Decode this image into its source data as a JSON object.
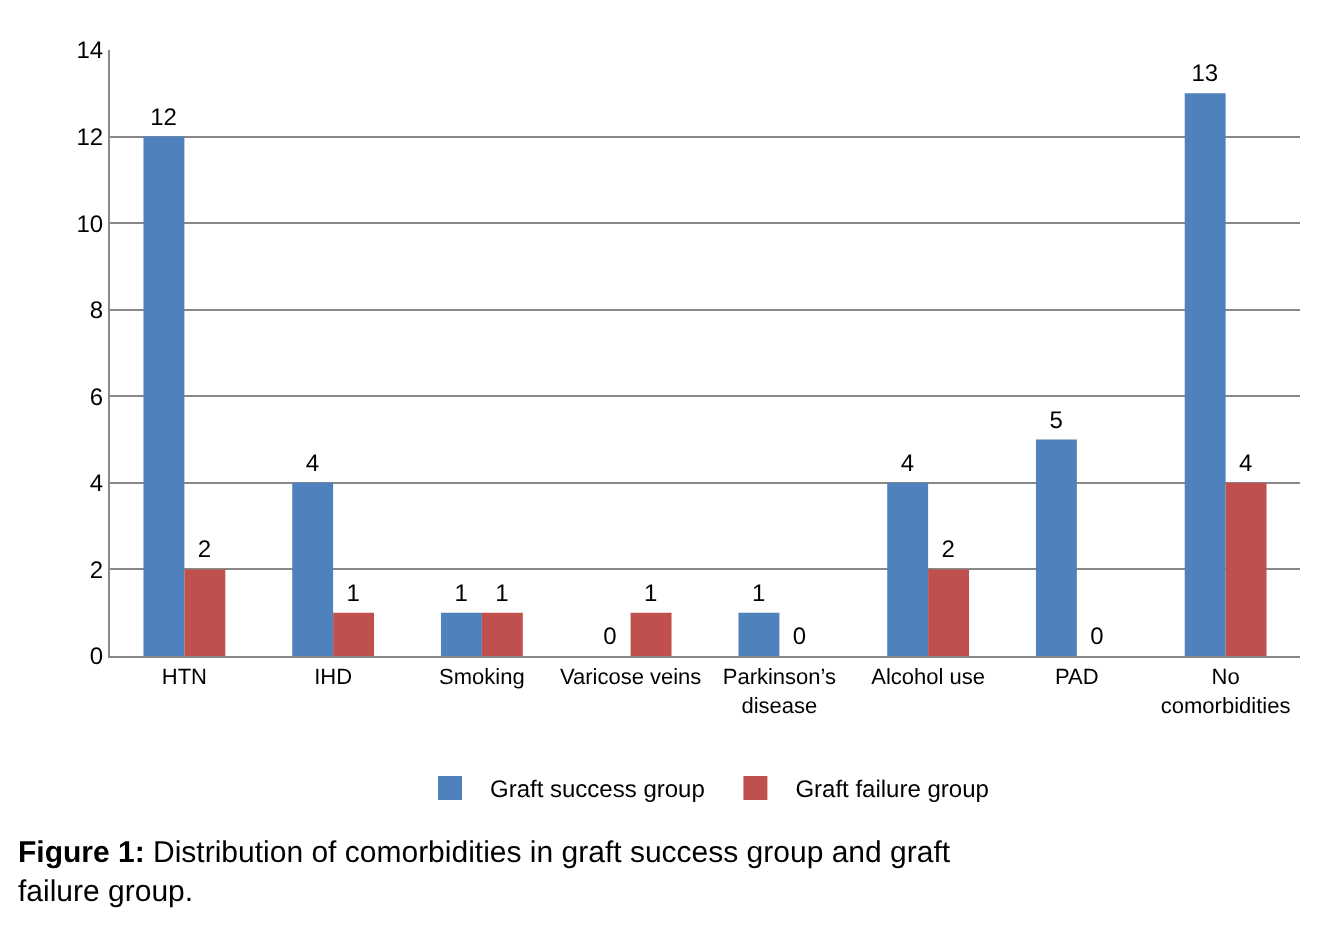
{
  "chart_data": {
    "type": "bar",
    "categories": [
      "HTN",
      "IHD",
      "Smoking",
      "Varicose veins",
      "Parkinson’s disease",
      "Alcohol use",
      "PAD",
      "No comorbidities"
    ],
    "series": [
      {
        "name": "Graft success group",
        "color": "#4f81bd",
        "values": [
          12,
          4,
          1,
          0,
          1,
          4,
          5,
          13
        ]
      },
      {
        "name": "Graft failure group",
        "color": "#c0504d",
        "values": [
          2,
          1,
          1,
          1,
          0,
          2,
          0,
          4
        ]
      }
    ],
    "ylim": [
      0,
      14
    ],
    "yticks": [
      0,
      2,
      4,
      6,
      8,
      10,
      12,
      14
    ],
    "grid": "y",
    "legend": "bottom",
    "data_labels": true,
    "annotations": [
      "Figure 1: Distribution of comorbidities in graft success group and graft failure group."
    ]
  }
}
